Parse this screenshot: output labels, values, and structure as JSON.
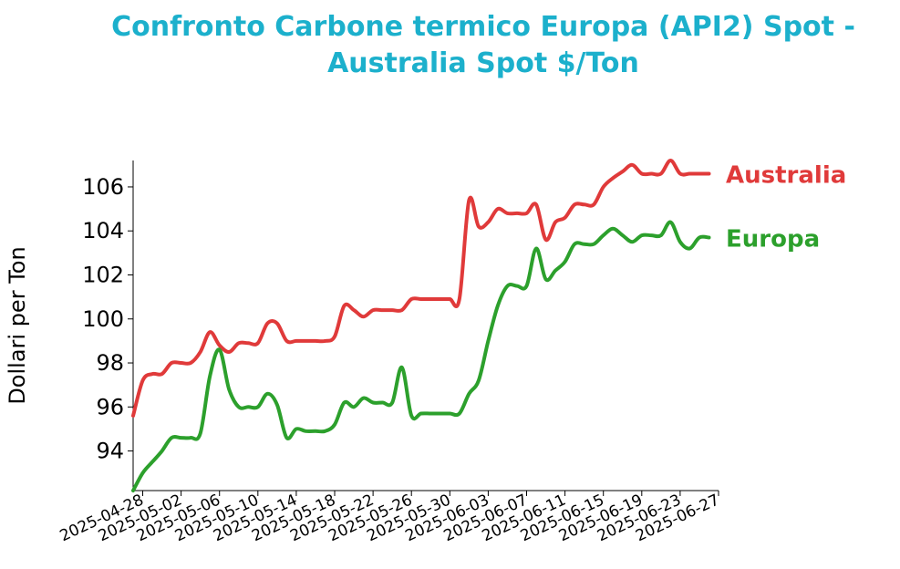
{
  "chart_data": {
    "type": "line",
    "title_line1": "Confronto Carbone termico Europa (API2) Spot -",
    "title_line2": "Australia Spot $/Ton",
    "title_color": "#1cb0cc",
    "xlabel": "",
    "ylabel": "Dollari per Ton",
    "ylim": [
      92.2,
      107.2
    ],
    "yticks": [
      94,
      96,
      98,
      100,
      102,
      104,
      106
    ],
    "xlim": [
      "2025-04-27",
      "2025-06-27"
    ],
    "xticks": [
      "2025-04-28",
      "2025-05-02",
      "2025-05-06",
      "2025-05-10",
      "2025-05-14",
      "2025-05-18",
      "2025-05-22",
      "2025-05-26",
      "2025-05-30",
      "2025-06-03",
      "2025-06-07",
      "2025-06-11",
      "2025-06-15",
      "2025-06-19",
      "2025-06-23",
      "2025-06-27"
    ],
    "grid": false,
    "legend": "direct labels at right end of lines",
    "series": [
      {
        "name": "Australia",
        "color": "#e03a3a",
        "points": [
          [
            "2025-04-27",
            95.6
          ],
          [
            "2025-04-28",
            97.2
          ],
          [
            "2025-04-29",
            97.5
          ],
          [
            "2025-04-30",
            97.5
          ],
          [
            "2025-05-01",
            98.0
          ],
          [
            "2025-05-02",
            98.0
          ],
          [
            "2025-05-03",
            98.0
          ],
          [
            "2025-05-04",
            98.5
          ],
          [
            "2025-05-05",
            99.4
          ],
          [
            "2025-05-06",
            98.8
          ],
          [
            "2025-05-07",
            98.5
          ],
          [
            "2025-05-08",
            98.9
          ],
          [
            "2025-05-09",
            98.9
          ],
          [
            "2025-05-10",
            98.9
          ],
          [
            "2025-05-11",
            99.8
          ],
          [
            "2025-05-12",
            99.8
          ],
          [
            "2025-05-13",
            99.0
          ],
          [
            "2025-05-14",
            99.0
          ],
          [
            "2025-05-15",
            99.0
          ],
          [
            "2025-05-16",
            99.0
          ],
          [
            "2025-05-17",
            99.0
          ],
          [
            "2025-05-18",
            99.2
          ],
          [
            "2025-05-19",
            100.6
          ],
          [
            "2025-05-20",
            100.4
          ],
          [
            "2025-05-21",
            100.1
          ],
          [
            "2025-05-22",
            100.4
          ],
          [
            "2025-05-23",
            100.4
          ],
          [
            "2025-05-24",
            100.4
          ],
          [
            "2025-05-25",
            100.4
          ],
          [
            "2025-05-26",
            100.9
          ],
          [
            "2025-05-27",
            100.9
          ],
          [
            "2025-05-28",
            100.9
          ],
          [
            "2025-05-29",
            100.9
          ],
          [
            "2025-05-30",
            100.9
          ],
          [
            "2025-05-31",
            100.9
          ],
          [
            "2025-06-01",
            105.4
          ],
          [
            "2025-06-02",
            104.2
          ],
          [
            "2025-06-03",
            104.4
          ],
          [
            "2025-06-04",
            105.0
          ],
          [
            "2025-06-05",
            104.8
          ],
          [
            "2025-06-06",
            104.8
          ],
          [
            "2025-06-07",
            104.8
          ],
          [
            "2025-06-08",
            105.2
          ],
          [
            "2025-06-09",
            103.6
          ],
          [
            "2025-06-10",
            104.4
          ],
          [
            "2025-06-11",
            104.6
          ],
          [
            "2025-06-12",
            105.2
          ],
          [
            "2025-06-13",
            105.2
          ],
          [
            "2025-06-14",
            105.2
          ],
          [
            "2025-06-15",
            106.0
          ],
          [
            "2025-06-16",
            106.4
          ],
          [
            "2025-06-17",
            106.7
          ],
          [
            "2025-06-18",
            107.0
          ],
          [
            "2025-06-19",
            106.6
          ],
          [
            "2025-06-20",
            106.6
          ],
          [
            "2025-06-21",
            106.6
          ],
          [
            "2025-06-22",
            107.2
          ],
          [
            "2025-06-23",
            106.6
          ],
          [
            "2025-06-24",
            106.6
          ],
          [
            "2025-06-25",
            106.6
          ],
          [
            "2025-06-26",
            106.6
          ]
        ]
      },
      {
        "name": "Europa",
        "color": "#2ca02c",
        "points": [
          [
            "2025-04-27",
            92.2
          ],
          [
            "2025-04-28",
            93.0
          ],
          [
            "2025-04-29",
            93.5
          ],
          [
            "2025-04-30",
            94.0
          ],
          [
            "2025-05-01",
            94.6
          ],
          [
            "2025-05-02",
            94.6
          ],
          [
            "2025-05-03",
            94.6
          ],
          [
            "2025-05-04",
            94.8
          ],
          [
            "2025-05-05",
            97.4
          ],
          [
            "2025-05-06",
            98.6
          ],
          [
            "2025-05-07",
            96.8
          ],
          [
            "2025-05-08",
            96.0
          ],
          [
            "2025-05-09",
            96.0
          ],
          [
            "2025-05-10",
            96.0
          ],
          [
            "2025-05-11",
            96.6
          ],
          [
            "2025-05-12",
            96.1
          ],
          [
            "2025-05-13",
            94.6
          ],
          [
            "2025-05-14",
            95.0
          ],
          [
            "2025-05-15",
            94.9
          ],
          [
            "2025-05-16",
            94.9
          ],
          [
            "2025-05-17",
            94.9
          ],
          [
            "2025-05-18",
            95.2
          ],
          [
            "2025-05-19",
            96.2
          ],
          [
            "2025-05-20",
            96.0
          ],
          [
            "2025-05-21",
            96.4
          ],
          [
            "2025-05-22",
            96.2
          ],
          [
            "2025-05-23",
            96.2
          ],
          [
            "2025-05-24",
            96.2
          ],
          [
            "2025-05-25",
            97.8
          ],
          [
            "2025-05-26",
            95.6
          ],
          [
            "2025-05-27",
            95.7
          ],
          [
            "2025-05-28",
            95.7
          ],
          [
            "2025-05-29",
            95.7
          ],
          [
            "2025-05-30",
            95.7
          ],
          [
            "2025-05-31",
            95.7
          ],
          [
            "2025-06-01",
            96.6
          ],
          [
            "2025-06-02",
            97.2
          ],
          [
            "2025-06-03",
            99.0
          ],
          [
            "2025-06-04",
            100.6
          ],
          [
            "2025-06-05",
            101.5
          ],
          [
            "2025-06-06",
            101.5
          ],
          [
            "2025-06-07",
            101.5
          ],
          [
            "2025-06-08",
            103.2
          ],
          [
            "2025-06-09",
            101.8
          ],
          [
            "2025-06-10",
            102.2
          ],
          [
            "2025-06-11",
            102.6
          ],
          [
            "2025-06-12",
            103.4
          ],
          [
            "2025-06-13",
            103.4
          ],
          [
            "2025-06-14",
            103.4
          ],
          [
            "2025-06-15",
            103.8
          ],
          [
            "2025-06-16",
            104.1
          ],
          [
            "2025-06-17",
            103.8
          ],
          [
            "2025-06-18",
            103.5
          ],
          [
            "2025-06-19",
            103.8
          ],
          [
            "2025-06-20",
            103.8
          ],
          [
            "2025-06-21",
            103.8
          ],
          [
            "2025-06-22",
            104.4
          ],
          [
            "2025-06-23",
            103.5
          ],
          [
            "2025-06-24",
            103.2
          ],
          [
            "2025-06-25",
            103.7
          ],
          [
            "2025-06-26",
            103.7
          ]
        ]
      }
    ]
  }
}
